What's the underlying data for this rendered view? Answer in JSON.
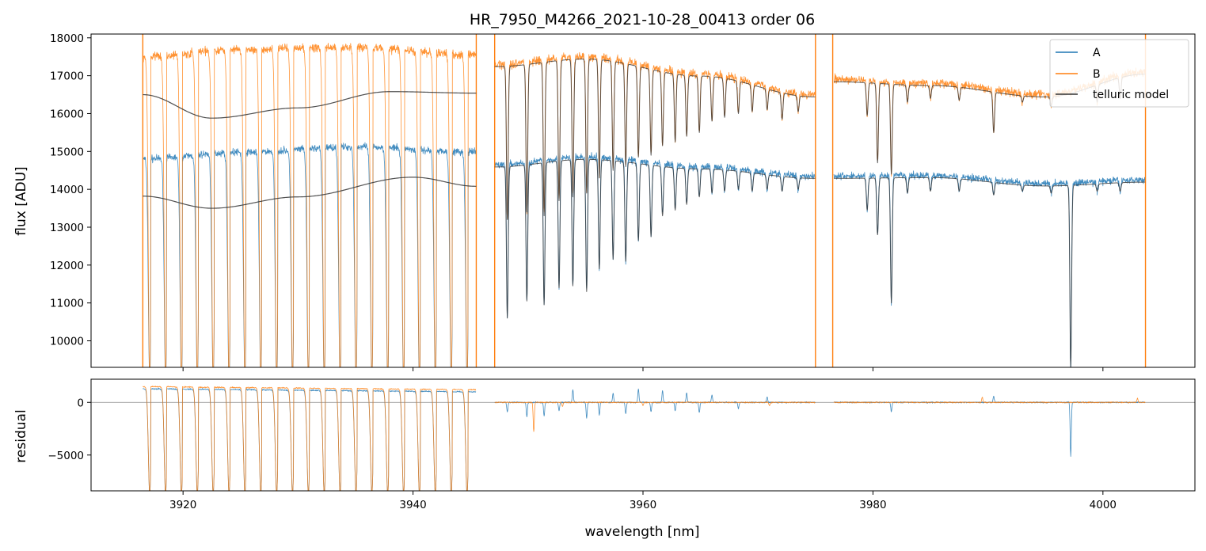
{
  "colors": {
    "A": "#1f77b4",
    "B": "#ff7f0e",
    "telluric_model": "#333333",
    "zero_line": "#888888"
  },
  "chart_data": [
    {
      "type": "line",
      "panel": "flux",
      "title": "HR_7950_M4266_2021-10-28_00413  order 06",
      "ylabel": "flux [ADU]",
      "xlabel": "",
      "xlim": [
        3912,
        4008
      ],
      "ylim": [
        9300,
        18100
      ],
      "xticks": [
        3920,
        3940,
        3960,
        3980,
        4000
      ],
      "yticks": [
        10000,
        11000,
        12000,
        13000,
        14000,
        15000,
        16000,
        17000,
        18000
      ],
      "legend": {
        "position": "top-right",
        "entries": [
          "A",
          "B",
          "telluric model"
        ]
      },
      "series": [
        {
          "name": "A",
          "style": "spectrum",
          "color": "#1f77b4",
          "noise": 140,
          "segments": [
            {
              "x_range": [
                3916.5,
                3945.5
              ],
              "continuum": [
                [
                  3916.5,
                  14800
                ],
                [
                  3925,
                  14980
                ],
                [
                  3935,
                  15120
                ],
                [
                  3945.5,
                  14980
                ]
              ]
            },
            {
              "x_range": [
                3947.1,
                3975.0
              ],
              "continuum": [
                [
                  3947.1,
                  14650
                ],
                [
                  3955,
                  14850
                ],
                [
                  3965,
                  14600
                ],
                [
                  3975,
                  14350
                ]
              ]
            },
            {
              "x_range": [
                3976.6,
                4003.7
              ],
              "continuum": [
                [
                  3976.6,
                  14350
                ],
                [
                  3985,
                  14370
                ],
                [
                  3995,
                  14150
                ],
                [
                  4003.7,
                  14250
                ]
              ]
            }
          ],
          "comb_lines": {
            "x_range": [
              3916.5,
              3945.5
            ],
            "spacing": 1.38,
            "width": 0.12,
            "min": 9300
          },
          "absorption_lines": [
            [
              3948.2,
              10600
            ],
            [
              3949.9,
              11050
            ],
            [
              3951.4,
              10950
            ],
            [
              3952.7,
              11400
            ],
            [
              3953.9,
              11450
            ],
            [
              3955.1,
              11300
            ],
            [
              3956.2,
              11900
            ],
            [
              3957.4,
              12150
            ],
            [
              3958.5,
              12100
            ],
            [
              3959.6,
              12650
            ],
            [
              3960.7,
              12750
            ],
            [
              3961.7,
              13300
            ],
            [
              3962.8,
              13450
            ],
            [
              3963.8,
              13600
            ],
            [
              3964.9,
              13800
            ],
            [
              3966.0,
              13900
            ],
            [
              3967.1,
              13950
            ],
            [
              3968.3,
              14000
            ],
            [
              3969.5,
              13950
            ],
            [
              3970.8,
              14000
            ],
            [
              3972.1,
              13950
            ],
            [
              3973.5,
              14000
            ],
            [
              3979.5,
              13450
            ],
            [
              3980.4,
              12800
            ],
            [
              3981.6,
              11000
            ],
            [
              3983.0,
              13900
            ],
            [
              3985.0,
              13950
            ],
            [
              3987.5,
              13950
            ],
            [
              3990.5,
              13850
            ],
            [
              3993.0,
              13950
            ],
            [
              3995.5,
              13900
            ],
            [
              3997.2,
              9300
            ],
            [
              3999.5,
              13950
            ],
            [
              4001.5,
              13950
            ]
          ]
        },
        {
          "name": "B",
          "style": "spectrum",
          "color": "#ff7f0e",
          "noise": 170,
          "segments": [
            {
              "x_range": [
                3916.5,
                3945.5
              ],
              "continuum": [
                [
                  3916.5,
                  17500
                ],
                [
                  3925,
                  17700
                ],
                [
                  3935,
                  17750
                ],
                [
                  3945.5,
                  17550
                ]
              ]
            },
            {
              "x_range": [
                3947.1,
                3975.0
              ],
              "continuum": [
                [
                  3947.1,
                  17300
                ],
                [
                  3955,
                  17500
                ],
                [
                  3965,
                  17050
                ],
                [
                  3975,
                  16500
                ]
              ]
            },
            {
              "x_range": [
                3976.6,
                4003.7
              ],
              "continuum": [
                [
                  3976.6,
                  16900
                ],
                [
                  3985,
                  16800
                ],
                [
                  3995,
                  16500
                ],
                [
                  4003.7,
                  17100
                ]
              ]
            }
          ],
          "comb_lines": {
            "x_range": [
              3916.5,
              3945.5
            ],
            "spacing": 1.38,
            "width": 0.12,
            "min": 9300
          },
          "absorption_lines": [
            [
              3948.2,
              13200
            ],
            [
              3949.9,
              13400
            ],
            [
              3951.4,
              13300
            ],
            [
              3952.7,
              13700
            ],
            [
              3953.9,
              13800
            ],
            [
              3955.1,
              13900
            ],
            [
              3956.2,
              14300
            ],
            [
              3957.4,
              14500
            ],
            [
              3958.5,
              14600
            ],
            [
              3959.6,
              14850
            ],
            [
              3960.7,
              14900
            ],
            [
              3961.7,
              15150
            ],
            [
              3962.8,
              15250
            ],
            [
              3963.8,
              15400
            ],
            [
              3964.9,
              15500
            ],
            [
              3966.0,
              15800
            ],
            [
              3967.1,
              15900
            ],
            [
              3968.3,
              16000
            ],
            [
              3969.5,
              16050
            ],
            [
              3970.8,
              16100
            ],
            [
              3972.1,
              15850
            ],
            [
              3973.5,
              16050
            ],
            [
              3979.5,
              15950
            ],
            [
              3980.4,
              14700
            ],
            [
              3981.6,
              14400
            ],
            [
              3983.0,
              16300
            ],
            [
              3985.0,
              16400
            ],
            [
              3987.5,
              16350
            ],
            [
              3990.5,
              15500
            ],
            [
              3993.0,
              16300
            ],
            [
              3995.5,
              16200
            ],
            [
              3999.5,
              16300
            ],
            [
              4001.5,
              16400
            ]
          ],
          "spikes": [
            3916.5,
            3945.5,
            3947.1,
            3975.0,
            3976.5,
            4003.7
          ]
        },
        {
          "name": "telluric model",
          "style": "model",
          "color": "#333333",
          "source": "B",
          "smooth_curve": {
            "x_range": [
              3916.5,
              3945.5
            ],
            "points": [
              [
                3916.5,
                16500
              ],
              [
                3922.5,
                15880
              ],
              [
                3930,
                16150
              ],
              [
                3938,
                16580
              ],
              [
                3945.5,
                16540
              ]
            ]
          }
        },
        {
          "name": "",
          "style": "model",
          "color": "#333333",
          "source": "A",
          "smooth_curve": {
            "x_range": [
              3916.5,
              3945.5
            ],
            "points": [
              [
                3916.5,
                13820
              ],
              [
                3922.5,
                13500
              ],
              [
                3930,
                13800
              ],
              [
                3940,
                14320
              ],
              [
                3945.5,
                14080
              ]
            ]
          }
        }
      ]
    },
    {
      "type": "line",
      "panel": "residual",
      "title": "",
      "ylabel": "residual",
      "xlabel": "wavelength [nm]",
      "xlim": [
        3912,
        4008
      ],
      "ylim": [
        -8400,
        2200
      ],
      "xticks": [
        3920,
        3940,
        3960,
        3980,
        4000
      ],
      "yticks": [
        -5000,
        0
      ],
      "zero_line": 0,
      "series": [
        {
          "name": "A",
          "color": "#1f77b4",
          "noise": 90,
          "comb": {
            "x_range": [
              3916.5,
              3945.5
            ],
            "spacing": 1.38,
            "width": 0.12,
            "top": 1300,
            "min": -8400
          },
          "segments": [
            [
              3947.1,
              3975.0
            ],
            [
              3976.6,
              4003.7
            ]
          ],
          "lines": [
            [
              3948.2,
              -900
            ],
            [
              3949.9,
              -1400
            ],
            [
              3951.4,
              -1300
            ],
            [
              3952.7,
              -800
            ],
            [
              3953.9,
              1200
            ],
            [
              3955.1,
              -1500
            ],
            [
              3956.2,
              -1200
            ],
            [
              3957.4,
              900
            ],
            [
              3958.5,
              -1100
            ],
            [
              3959.6,
              1250
            ],
            [
              3960.7,
              -900
            ],
            [
              3961.7,
              1100
            ],
            [
              3962.8,
              -800
            ],
            [
              3963.8,
              900
            ],
            [
              3964.9,
              -1000
            ],
            [
              3966.0,
              700
            ],
            [
              3968.3,
              -600
            ],
            [
              3970.8,
              500
            ],
            [
              3981.6,
              -900
            ],
            [
              3990.5,
              600
            ],
            [
              3997.2,
              -5100
            ]
          ]
        },
        {
          "name": "B",
          "color": "#ff7f0e",
          "noise": 80,
          "comb": {
            "x_range": [
              3916.5,
              3945.5
            ],
            "spacing": 1.38,
            "width": 0.12,
            "top": 1500,
            "min": -8400
          },
          "segments": [
            [
              3947.1,
              3975.0
            ],
            [
              3976.6,
              4003.7
            ]
          ],
          "lines": [
            [
              3950.5,
              -2800
            ],
            [
              3953.0,
              -400
            ],
            [
              3960.0,
              -300
            ],
            [
              3971.0,
              -300
            ],
            [
              3989.5,
              500
            ],
            [
              4003.0,
              400
            ]
          ]
        }
      ]
    }
  ]
}
